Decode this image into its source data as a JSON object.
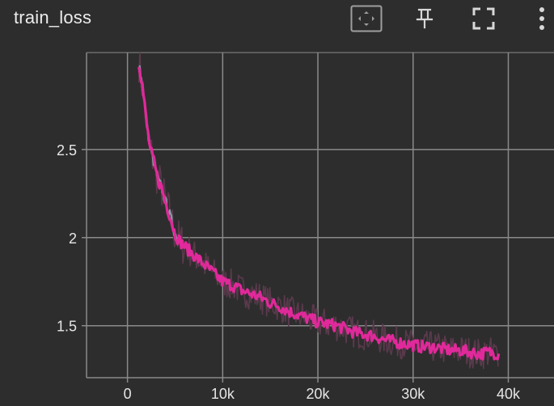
{
  "header": {
    "title": "train_loss",
    "icons": {
      "fit": "fit-to-data-icon",
      "pin": "pin-icon",
      "expand": "fullscreen-icon",
      "more": "more-vert-icon"
    }
  },
  "colors": {
    "background": "#2d2d2d",
    "grid": "#8a8a8a",
    "smoothed": "#e0299a",
    "raw": "#5a3a4c",
    "early_raw": "#8a9aa6"
  },
  "chart_data": {
    "type": "line",
    "title": "train_loss",
    "xlabel": "",
    "ylabel": "",
    "xlim": [
      -4300,
      44800
    ],
    "ylim": [
      1.205,
      3.05
    ],
    "x_ticks": [
      0,
      10000,
      20000,
      30000,
      40000
    ],
    "x_tick_labels": [
      "0",
      "10k",
      "20k",
      "30k",
      "40k"
    ],
    "y_ticks": [
      1.5,
      2.0,
      2.5
    ],
    "y_tick_labels": [
      "1.5",
      "2",
      "2.5"
    ],
    "grid": true,
    "series": [
      {
        "role": "smoothed",
        "color": "#e0299a",
        "x": [
          1200,
          1600,
          2000,
          2400,
          2800,
          3200,
          3600,
          4000,
          4500,
          5000,
          5500,
          6000,
          7000,
          8000,
          9000,
          10000,
          11000,
          12000,
          13000,
          14000,
          15000,
          16000,
          17000,
          18000,
          19000,
          20000,
          21000,
          22000,
          23000,
          24000,
          25000,
          26000,
          27000,
          28000,
          29000,
          30000,
          31000,
          32000,
          33000,
          34000,
          35000,
          36000,
          37000,
          38000,
          39000
        ],
        "y": [
          3.0,
          2.85,
          2.65,
          2.5,
          2.42,
          2.33,
          2.28,
          2.2,
          2.12,
          2.02,
          1.98,
          1.95,
          1.9,
          1.85,
          1.8,
          1.75,
          1.73,
          1.7,
          1.68,
          1.66,
          1.63,
          1.61,
          1.58,
          1.56,
          1.54,
          1.52,
          1.51,
          1.5,
          1.48,
          1.46,
          1.45,
          1.44,
          1.42,
          1.41,
          1.4,
          1.39,
          1.38,
          1.38,
          1.37,
          1.36,
          1.36,
          1.35,
          1.34,
          1.35,
          1.34
        ]
      }
    ]
  }
}
